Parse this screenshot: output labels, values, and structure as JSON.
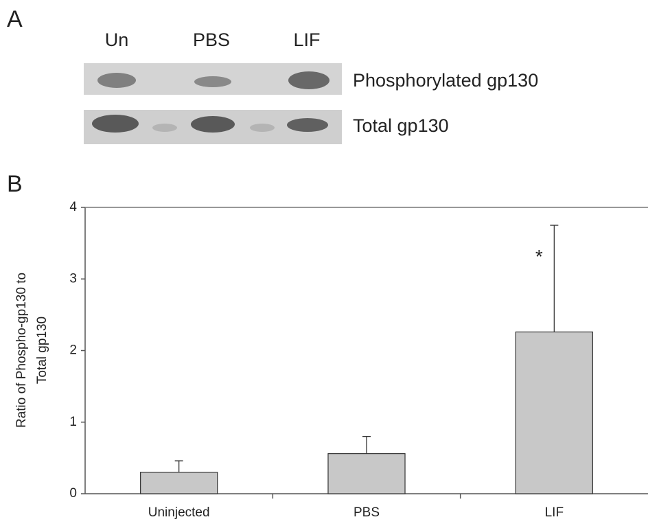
{
  "panel_a": {
    "label": "A",
    "lanes": [
      "Un",
      "PBS",
      "LIF"
    ],
    "blots": [
      "Phosphorylated gp130",
      "Total gp130"
    ]
  },
  "chart_data": {
    "type": "bar",
    "panel_label": "B",
    "y_label": [
      "Ratio of Phospho-gp130 to",
      "Total gp130"
    ],
    "categories": [
      "Uninjected",
      "PBS",
      "LIF"
    ],
    "values": [
      0.3,
      0.56,
      2.26
    ],
    "errors": [
      0.16,
      0.24,
      1.49
    ],
    "color": "#c8c8c8",
    "ylim": [
      0,
      4
    ],
    "yticks": [
      0,
      1,
      2,
      3,
      4
    ],
    "annotations": [
      {
        "text": "*",
        "category": "LIF"
      }
    ]
  }
}
